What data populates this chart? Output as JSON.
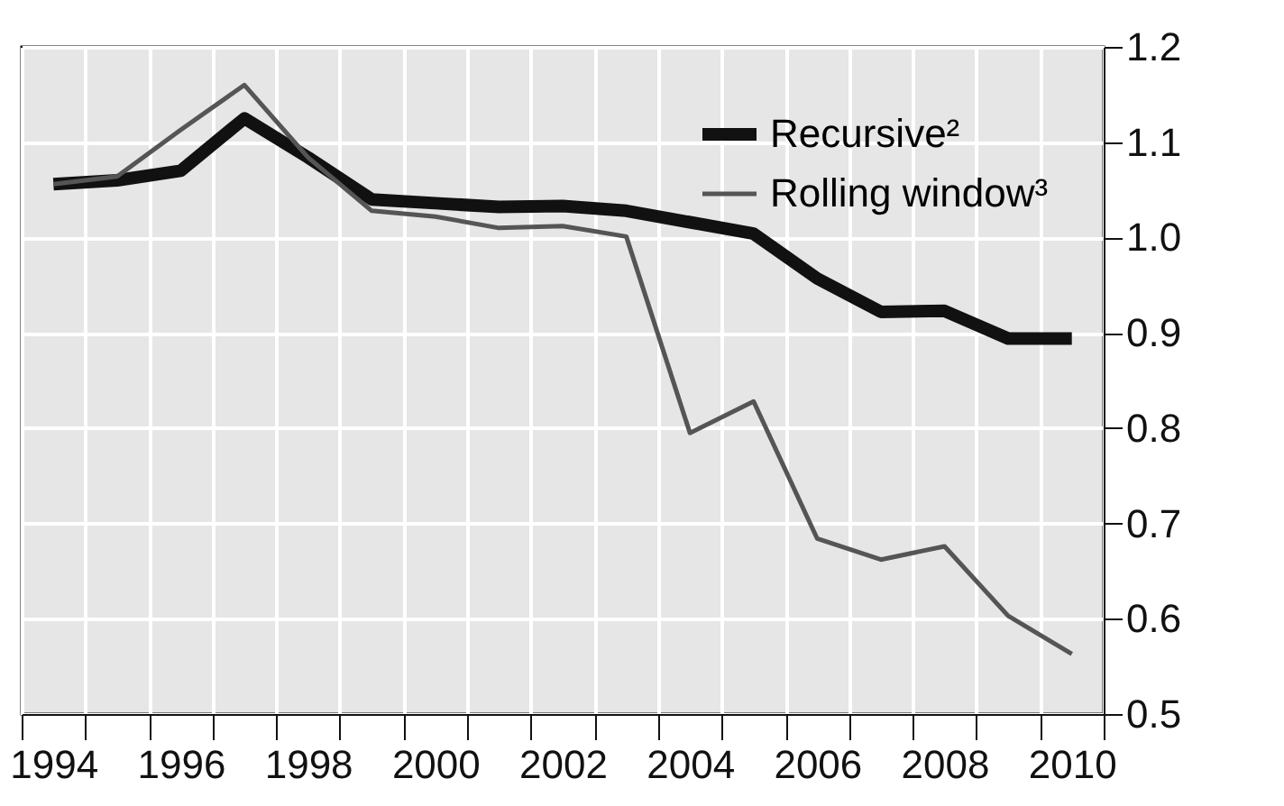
{
  "chart_data": {
    "type": "line",
    "categories": [
      "1994",
      null,
      "1996",
      null,
      "1998",
      null,
      "2000",
      null,
      "2002",
      null,
      "2004",
      null,
      "2006",
      null,
      "2008",
      null,
      "2010"
    ],
    "series": [
      {
        "name": "Recursive²",
        "color": "#111111",
        "values": [
          1.056,
          1.06,
          1.07,
          1.125,
          1.084,
          1.04,
          1.036,
          1.032,
          1.033,
          1.028,
          1.016,
          1.004,
          0.957,
          0.922,
          0.923,
          0.894,
          0.894
        ]
      },
      {
        "name": "Rolling window³",
        "color": "#555555",
        "values": [
          1.056,
          1.064,
          1.113,
          1.16,
          1.084,
          1.028,
          1.022,
          1.01,
          1.012,
          1.001,
          0.795,
          0.828,
          0.684,
          0.662,
          0.676,
          0.603,
          0.563
        ]
      }
    ],
    "ylim": [
      0.5,
      1.2
    ],
    "yticks": [
      0.5,
      0.6,
      0.7,
      0.8,
      0.9,
      {
        "value": 1.0,
        "label": "1.0"
      },
      1.1,
      1.2
    ],
    "grid": true,
    "legend": "top right",
    "line_style": "solid",
    "marker": "none"
  }
}
